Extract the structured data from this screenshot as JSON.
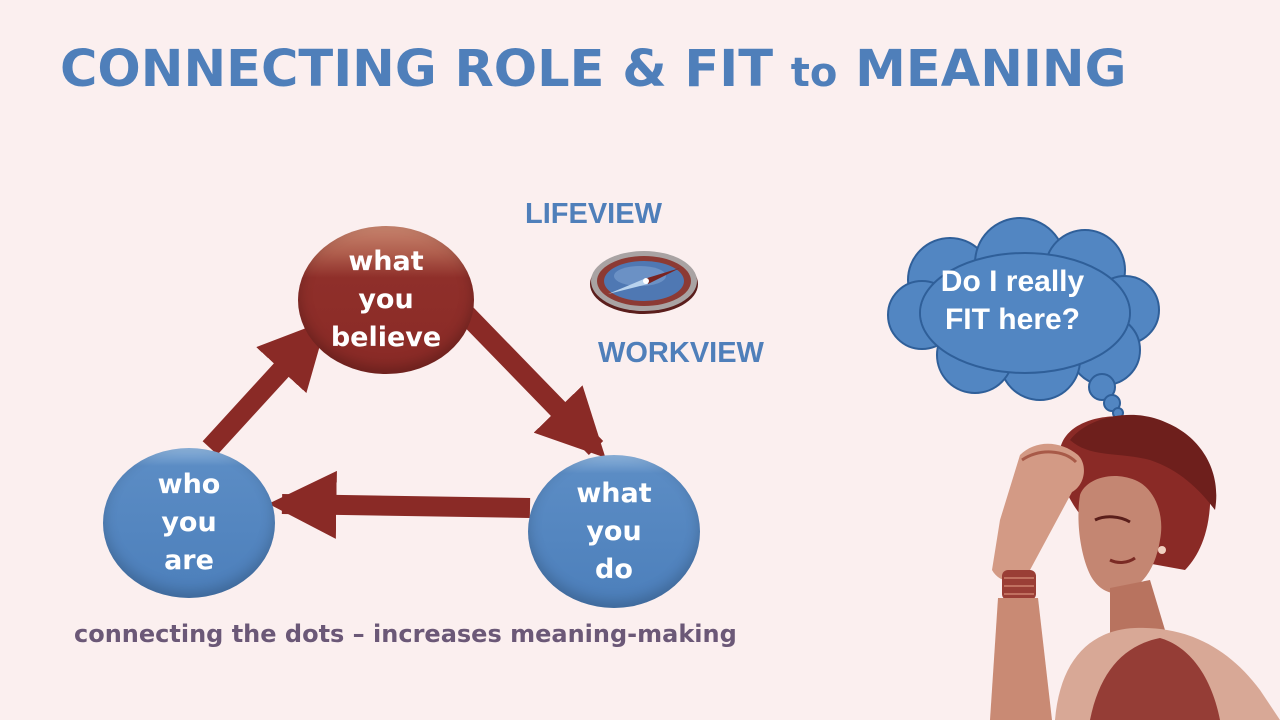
{
  "slide": {
    "title_main": "CONNECTING ROLE & FIT",
    "title_small": "to",
    "title_end": "MEANING",
    "lifeview": "LIFEVIEW",
    "workview": "WORKVIEW",
    "caption": "connecting the dots – increases meaning-making"
  },
  "diagram": {
    "nodes": [
      {
        "id": "believe",
        "lines": [
          "what",
          "you",
          "believe"
        ]
      },
      {
        "id": "are",
        "lines": [
          "who",
          "you",
          "are"
        ]
      },
      {
        "id": "do",
        "lines": [
          "what",
          "you",
          "do"
        ]
      }
    ],
    "edges": [
      {
        "from": "are",
        "to": "believe"
      },
      {
        "from": "believe",
        "to": "do"
      },
      {
        "from": "do",
        "to": "are"
      }
    ]
  },
  "thought_bubble": {
    "lines": [
      "Do I really",
      "FIT here?"
    ]
  },
  "colors": {
    "title": "#4f7fba",
    "blue_node": "#4c7fbb",
    "red_node": "#8a2a26",
    "arrow": "#8a2a26",
    "caption": "#6b5877",
    "background": "#fbefef"
  },
  "icons": [
    "compass-icon",
    "thought-cloud-icon",
    "thinking-woman-illustration"
  ]
}
